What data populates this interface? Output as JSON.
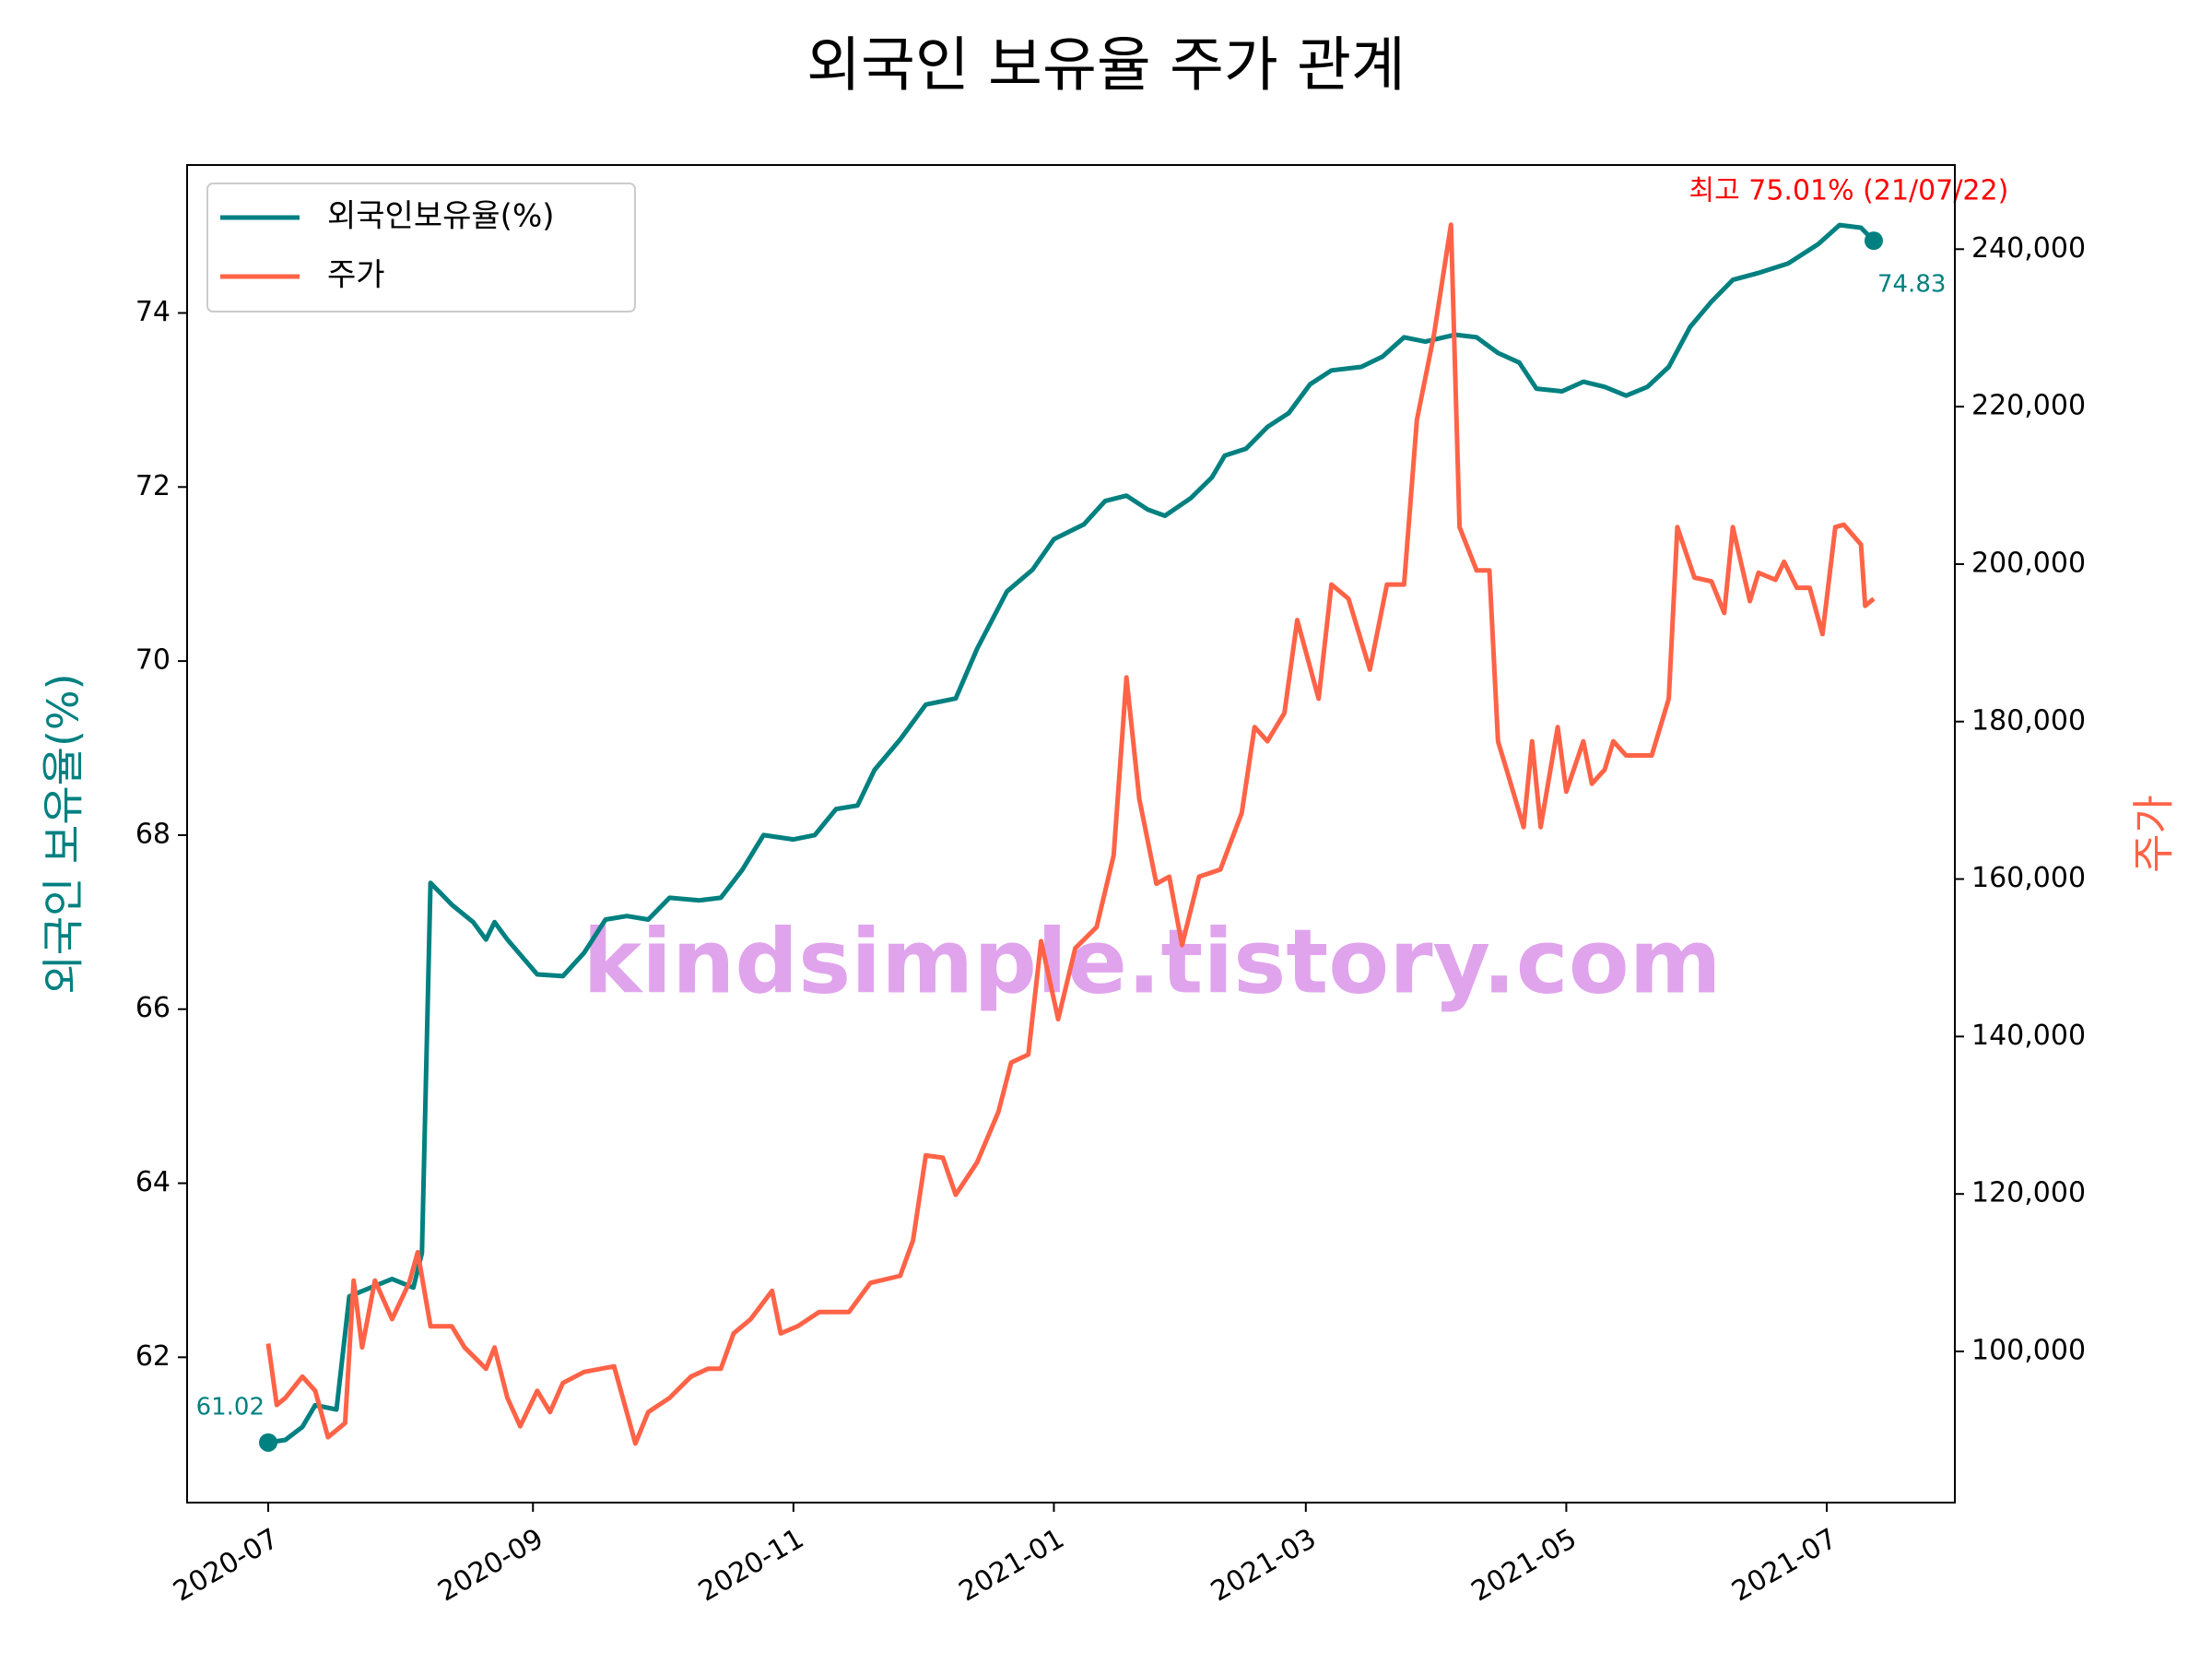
{
  "chart_data": {
    "type": "line",
    "title": "외국인 보유율 주가 관계",
    "watermark": "kindsimple.tistory.com",
    "ylabel": "외국인 보유율(%)",
    "y2label": "주가",
    "legend": "upper left",
    "xlim": [
      "2020-06-12",
      "2021-07-31"
    ],
    "xticks": [
      {
        "value": "2020-07-01",
        "label": "2020-07"
      },
      {
        "value": "2020-09-01",
        "label": "2020-09"
      },
      {
        "value": "2020-11-01",
        "label": "2020-11"
      },
      {
        "value": "2021-01-01",
        "label": "2021-01"
      },
      {
        "value": "2021-03-01",
        "label": "2021-03"
      },
      {
        "value": "2021-05-01",
        "label": "2021-05"
      },
      {
        "value": "2021-07-01",
        "label": "2021-07"
      }
    ],
    "ylim": [
      60.33,
      75.7
    ],
    "yticks": [
      62,
      64,
      66,
      68,
      70,
      72,
      74
    ],
    "y2lim": [
      80800,
      250690
    ],
    "y2ticks": [
      {
        "value": 100000,
        "label": "100,000"
      },
      {
        "value": 120000,
        "label": "120,000"
      },
      {
        "value": 140000,
        "label": "140,000"
      },
      {
        "value": 160000,
        "label": "160,000"
      },
      {
        "value": 180000,
        "label": "180,000"
      },
      {
        "value": 200000,
        "label": "200,000"
      },
      {
        "value": 220000,
        "label": "220,000"
      },
      {
        "value": 240000,
        "label": "240,000"
      }
    ],
    "annotations": [
      "61.02",
      "74.83",
      "최고 75.01% (21/07/22)"
    ],
    "annotation_color": "#ff0000",
    "series": [
      {
        "name": "외국인보유율(%)",
        "color": "#008080",
        "x": [
          "2020-07-01",
          "2020-07-05",
          "2020-07-09",
          "2020-07-12",
          "2020-07-17",
          "2020-07-20",
          "2020-07-25",
          "2020-07-30",
          "2020-08-04",
          "2020-08-06",
          "2020-08-08",
          "2020-08-13",
          "2020-08-18",
          "2020-08-21",
          "2020-08-23",
          "2020-08-26",
          "2020-09-02",
          "2020-09-08",
          "2020-09-13",
          "2020-09-18",
          "2020-09-23",
          "2020-09-28",
          "2020-10-03",
          "2020-10-10",
          "2020-10-15",
          "2020-10-20",
          "2020-10-25",
          "2020-11-01",
          "2020-11-06",
          "2020-11-11",
          "2020-11-16",
          "2020-11-20",
          "2020-11-26",
          "2020-12-02",
          "2020-12-09",
          "2020-12-14",
          "2020-12-21",
          "2020-12-27",
          "2021-01-01",
          "2021-01-08",
          "2021-01-13",
          "2021-01-18",
          "2021-01-23",
          "2021-01-27",
          "2021-02-02",
          "2021-02-07",
          "2021-02-10",
          "2021-02-15",
          "2021-02-20",
          "2021-02-25",
          "2021-03-02",
          "2021-03-07",
          "2021-03-14",
          "2021-03-19",
          "2021-03-24",
          "2021-03-29",
          "2021-04-05",
          "2021-04-10",
          "2021-04-15",
          "2021-04-20",
          "2021-04-24",
          "2021-04-30",
          "2021-05-05",
          "2021-05-10",
          "2021-05-15",
          "2021-05-20",
          "2021-05-25",
          "2021-05-30",
          "2021-06-04",
          "2021-06-09",
          "2021-06-15",
          "2021-06-22",
          "2021-06-29",
          "2021-07-04",
          "2021-07-09",
          "2021-07-12"
        ],
        "values": [
          61.02,
          61.05,
          61.2,
          61.45,
          61.4,
          62.7,
          62.8,
          62.9,
          62.8,
          63.2,
          67.45,
          67.2,
          67.0,
          66.8,
          67.0,
          66.8,
          66.4,
          66.38,
          66.65,
          67.03,
          67.07,
          67.03,
          67.28,
          67.25,
          67.28,
          67.6,
          68.0,
          67.95,
          68.0,
          68.3,
          68.34,
          68.75,
          69.1,
          69.5,
          69.57,
          70.14,
          70.8,
          71.05,
          71.4,
          71.57,
          71.84,
          71.9,
          71.74,
          71.67,
          71.87,
          72.11,
          72.36,
          72.44,
          72.69,
          72.85,
          73.18,
          73.34,
          73.38,
          73.5,
          73.72,
          73.67,
          73.75,
          73.72,
          73.54,
          73.43,
          73.13,
          73.1,
          73.21,
          73.15,
          73.05,
          73.15,
          73.38,
          73.84,
          74.13,
          74.38,
          74.46,
          74.57,
          74.79,
          75.01,
          74.98,
          74.83
        ]
      },
      {
        "name": "주가",
        "color": "#ff6347",
        "axis": "y2",
        "x": [
          "2020-07-01",
          "2020-07-03",
          "2020-07-05",
          "2020-07-09",
          "2020-07-12",
          "2020-07-15",
          "2020-07-19",
          "2020-07-21",
          "2020-07-23",
          "2020-07-26",
          "2020-07-30",
          "2020-08-03",
          "2020-08-05",
          "2020-08-08",
          "2020-08-13",
          "2020-08-16",
          "2020-08-21",
          "2020-08-23",
          "2020-08-26",
          "2020-08-29",
          "2020-09-02",
          "2020-09-05",
          "2020-09-08",
          "2020-09-13",
          "2020-09-20",
          "2020-09-25",
          "2020-09-28",
          "2020-10-03",
          "2020-10-08",
          "2020-10-12",
          "2020-10-15",
          "2020-10-18",
          "2020-10-22",
          "2020-10-27",
          "2020-10-29",
          "2020-11-02",
          "2020-11-07",
          "2020-11-14",
          "2020-11-19",
          "2020-11-26",
          "2020-11-29",
          "2020-12-02",
          "2020-12-06",
          "2020-12-09",
          "2020-12-14",
          "2020-12-19",
          "2020-12-22",
          "2020-12-26",
          "2020-12-29",
          "2021-01-02",
          "2021-01-06",
          "2021-01-11",
          "2021-01-15",
          "2021-01-18",
          "2021-01-21",
          "2021-01-25",
          "2021-01-28",
          "2021-01-31",
          "2021-02-04",
          "2021-02-09",
          "2021-02-14",
          "2021-02-17",
          "2021-02-20",
          "2021-02-24",
          "2021-02-27",
          "2021-03-04",
          "2021-03-07",
          "2021-03-11",
          "2021-03-16",
          "2021-03-20",
          "2021-03-24",
          "2021-03-27",
          "2021-03-31",
          "2021-04-04",
          "2021-04-06",
          "2021-04-10",
          "2021-04-13",
          "2021-04-15",
          "2021-04-17",
          "2021-04-21",
          "2021-04-23",
          "2021-04-25",
          "2021-04-29",
          "2021-05-01",
          "2021-05-05",
          "2021-05-07",
          "2021-05-10",
          "2021-05-12",
          "2021-05-15",
          "2021-05-21",
          "2021-05-25",
          "2021-05-27",
          "2021-05-31",
          "2021-06-04",
          "2021-06-07",
          "2021-06-09",
          "2021-06-13",
          "2021-06-15",
          "2021-06-19",
          "2021-06-21",
          "2021-06-24",
          "2021-06-27",
          "2021-06-30",
          "2021-07-03",
          "2021-07-05",
          "2021-07-09",
          "2021-07-10",
          "2021-07-12"
        ],
        "values": [
          101000,
          93200,
          94100,
          96800,
          95000,
          89100,
          90900,
          109000,
          100500,
          109000,
          104100,
          108700,
          112600,
          103200,
          103200,
          100500,
          97800,
          100500,
          94100,
          90500,
          95000,
          92300,
          96000,
          97400,
          98100,
          88300,
          92300,
          94100,
          96800,
          97800,
          97800,
          102300,
          104100,
          107700,
          102300,
          103200,
          105000,
          105000,
          108700,
          109600,
          114100,
          124900,
          124600,
          119900,
          124000,
          130400,
          136700,
          137700,
          152100,
          142200,
          151200,
          153900,
          163000,
          185600,
          170200,
          159400,
          160300,
          151600,
          160300,
          161200,
          168400,
          179300,
          177500,
          181100,
          192900,
          182900,
          197400,
          195600,
          186600,
          197400,
          197400,
          218300,
          229100,
          243100,
          204700,
          199200,
          199200,
          177500,
          173900,
          166600,
          177500,
          166600,
          179300,
          171100,
          177500,
          172100,
          173900,
          177500,
          175700,
          175700,
          182900,
          204700,
          198300,
          197800,
          193800,
          204700,
          195300,
          198900,
          198000,
          200300,
          197000,
          197000,
          191100,
          204700,
          205000,
          202500,
          194700,
          195600
        ]
      }
    ]
  }
}
